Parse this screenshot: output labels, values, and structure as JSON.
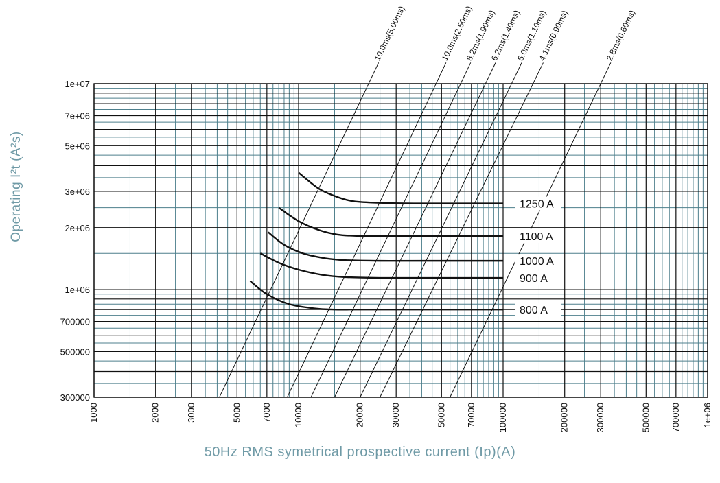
{
  "chart_data": {
    "type": "line",
    "xscale": "log",
    "yscale": "log",
    "xlabel": "50Hz RMS symetrical prospective current (Ip)(A)",
    "ylabel": "Operating I²t (A²s)",
    "xlim": [
      1000,
      1000000
    ],
    "ylim": [
      300000,
      10000000
    ],
    "x_ticks": [
      {
        "value": 1000,
        "label": "1000"
      },
      {
        "value": 2000,
        "label": "2000"
      },
      {
        "value": 3000,
        "label": "3000"
      },
      {
        "value": 5000,
        "label": "5000"
      },
      {
        "value": 7000,
        "label": "7000"
      },
      {
        "value": 10000,
        "label": "10000"
      },
      {
        "value": 20000,
        "label": "20000"
      },
      {
        "value": 30000,
        "label": "30000"
      },
      {
        "value": 50000,
        "label": "50000"
      },
      {
        "value": 70000,
        "label": "70000"
      },
      {
        "value": 100000,
        "label": "100000"
      },
      {
        "value": 200000,
        "label": "200000"
      },
      {
        "value": 300000,
        "label": "300000"
      },
      {
        "value": 500000,
        "label": "500000"
      },
      {
        "value": 700000,
        "label": "700000"
      },
      {
        "value": 1000000,
        "label": "1e+06"
      }
    ],
    "y_ticks": [
      {
        "value": 300000,
        "label": "300000"
      },
      {
        "value": 500000,
        "label": "500000"
      },
      {
        "value": 700000,
        "label": "700000"
      },
      {
        "value": 1000000,
        "label": "1e+06"
      },
      {
        "value": 2000000,
        "label": "2e+06"
      },
      {
        "value": 3000000,
        "label": "3e+06"
      },
      {
        "value": 5000000,
        "label": "5e+06"
      },
      {
        "value": 7000000,
        "label": "7e+06"
      },
      {
        "value": 10000000,
        "label": "1e+07"
      }
    ],
    "grid": true,
    "grid_colors": {
      "major": "#111111",
      "minor": "#4d7f8c"
    },
    "series": [
      {
        "name": "800 A",
        "x": [
          5800,
          7000,
          9000,
          12000,
          15000,
          20000,
          40000,
          100000
        ],
        "y": [
          1100000,
          950000,
          850000,
          810000,
          800000,
          800000,
          800000,
          800000
        ]
      },
      {
        "name": "900 A",
        "x": [
          6500,
          8000,
          10000,
          13000,
          17000,
          25000,
          40000,
          100000
        ],
        "y": [
          1500000,
          1350000,
          1250000,
          1180000,
          1150000,
          1140000,
          1140000,
          1140000
        ]
      },
      {
        "name": "1000 A",
        "x": [
          7100,
          8500,
          10500,
          13500,
          17000,
          25000,
          40000,
          100000
        ],
        "y": [
          1900000,
          1650000,
          1500000,
          1420000,
          1390000,
          1380000,
          1380000,
          1380000
        ]
      },
      {
        "name": "1100 A",
        "x": [
          8000,
          10000,
          12500,
          15500,
          20000,
          25000,
          40000,
          100000
        ],
        "y": [
          2500000,
          2150000,
          1950000,
          1850000,
          1820000,
          1820000,
          1820000,
          1820000
        ]
      },
      {
        "name": "1250 A",
        "x": [
          10000,
          12500,
          15000,
          18000,
          22000,
          28000,
          40000,
          100000
        ],
        "y": [
          3700000,
          3100000,
          2850000,
          2700000,
          2650000,
          2630000,
          2620000,
          2620000
        ]
      }
    ],
    "diagonal_lines": [
      {
        "label": "10.0ms(5.00ms)",
        "x": [
          4100,
          22000
        ],
        "y": [
          300000,
          10000000
        ]
      },
      {
        "label": "10.0ms(2.50ms)",
        "x": [
          8800,
          47000
        ],
        "y": [
          300000,
          10000000
        ]
      },
      {
        "label": "8.2ms(1.90ms)",
        "x": [
          11500,
          62000
        ],
        "y": [
          300000,
          10000000
        ]
      },
      {
        "label": "6.2ms(1.40ms)",
        "x": [
          15000,
          82000
        ],
        "y": [
          300000,
          10000000
        ]
      },
      {
        "label": "5.0ms(1.10ms)",
        "x": [
          20000,
          110000
        ],
        "y": [
          300000,
          10000000
        ]
      },
      {
        "label": "4.1ms(0.90ms)",
        "x": [
          25000,
          140000
        ],
        "y": [
          300000,
          10000000
        ]
      },
      {
        "label": "2.8ms(0.60ms)",
        "x": [
          55000,
          300000
        ],
        "y": [
          300000,
          10000000
        ]
      }
    ]
  }
}
